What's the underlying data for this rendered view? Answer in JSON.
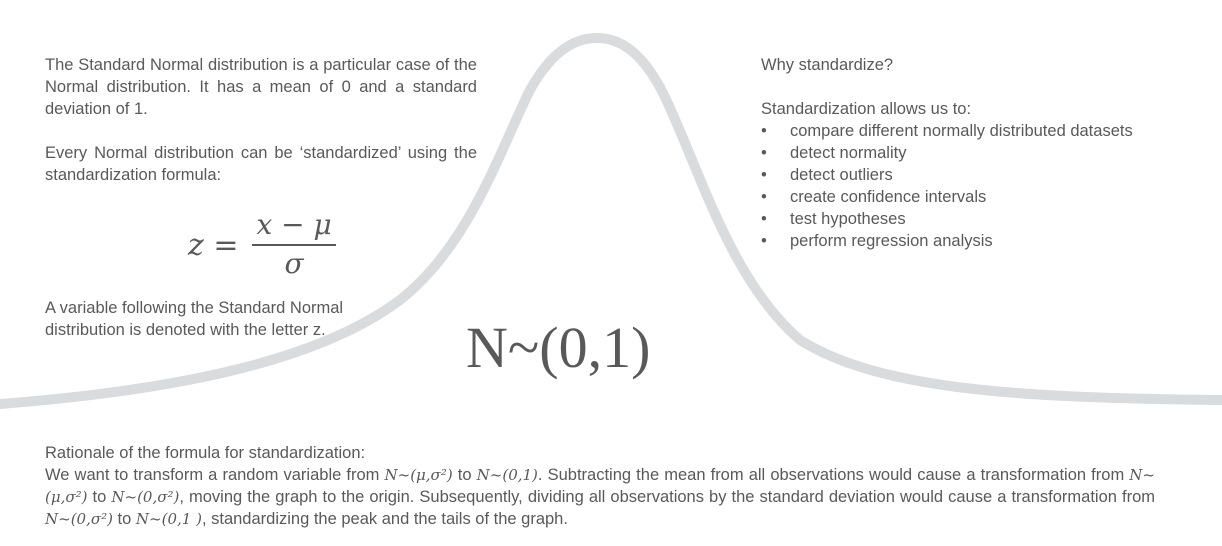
{
  "intro": {
    "paragraph1": "The Standard Normal distribution is a particular case of the Normal distribution. It has a mean of 0 and a standard deviation of 1.",
    "paragraph2": "Every Normal distribution can be ‘standardized’ using the standardization formula:"
  },
  "formula": {
    "lhs": "z =",
    "numerator": "x − μ",
    "denominator": "σ"
  },
  "denotation": "A variable following the Standard Normal distribution is denoted with the letter z.",
  "notation": "N~(0,1)",
  "why": {
    "heading": "Why standardize?",
    "intro": "Standardization allows us to:",
    "items": [
      "compare different normally distributed datasets",
      "detect normality",
      "detect outliers",
      "create confidence intervals",
      "test hypotheses",
      "perform regression analysis"
    ]
  },
  "rationale": {
    "heading": "Rationale of the formula for standardization:",
    "t1": "We want to transform a random variable from ",
    "m1": "N~(μ,σ²)",
    "t2": " to ",
    "m2": "N~(0,1)",
    "t3": ". Subtracting the mean from all observations would cause a transformation from ",
    "m3": "N~(μ,σ²)",
    "t4": " to ",
    "m4": "N~(0,σ²)",
    "t5": ", moving the graph to the origin. Subsequently, dividing all observations by the standard deviation would cause a transformation from ",
    "m5": "N~(0,σ²)",
    "t6": " to ",
    "m6": "N~(0,1 )",
    "t7": ", standardizing the peak and the tails of the graph."
  },
  "colors": {
    "text": "#595959",
    "curve": "#d8dcdf"
  }
}
